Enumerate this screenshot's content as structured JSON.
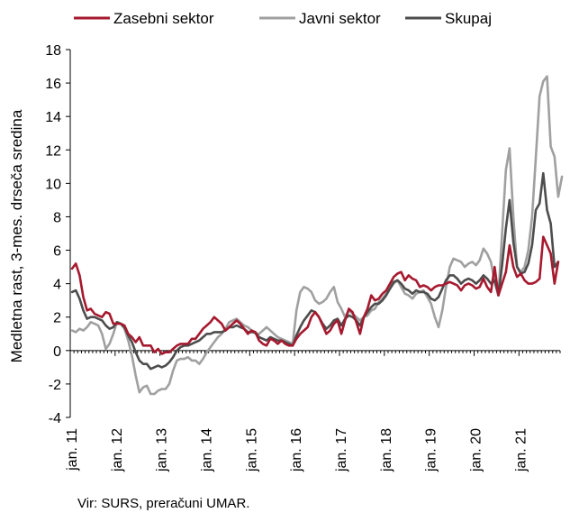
{
  "chart_data": {
    "type": "line",
    "ylabel": "Medletna rast, 3-mes. drseča sredina",
    "xlabel": "",
    "ylim": [
      -4,
      18
    ],
    "yticks": [
      -4,
      -2,
      0,
      2,
      4,
      6,
      8,
      10,
      12,
      14,
      16,
      18
    ],
    "xtick_labels": [
      "jan. 11",
      "jan. 12",
      "jan. 13",
      "jan. 14",
      "jan. 15",
      "jan. 16",
      "jan. 17",
      "jan. 18",
      "jan. 19",
      "jan. 20",
      "jan. 21"
    ],
    "x_start_label": "jan. 11",
    "grid": false,
    "legend_position": "top",
    "series": [
      {
        "name": "Zasebni sektor",
        "color": "#A6192E",
        "values": [
          4.9,
          5.2,
          4.5,
          3.2,
          2.4,
          2.5,
          2.2,
          2.1,
          2.0,
          2.3,
          2.2,
          1.6,
          1.6,
          1.6,
          1.5,
          1.0,
          0.8,
          0.5,
          0.8,
          0.3,
          0.3,
          0.3,
          -0.1,
          0.1,
          -0.2,
          -0.1,
          -0.1,
          0.1,
          0.3,
          0.4,
          0.4,
          0.4,
          0.7,
          0.7,
          1.0,
          1.3,
          1.5,
          1.7,
          2.0,
          1.8,
          1.6,
          1.2,
          1.4,
          1.6,
          1.8,
          1.6,
          1.3,
          1.0,
          1.2,
          1.1,
          0.6,
          0.4,
          0.3,
          0.7,
          0.6,
          0.4,
          0.6,
          0.4,
          0.3,
          0.3,
          0.7,
          1.0,
          1.2,
          1.4,
          2.0,
          2.3,
          2.0,
          1.5,
          1.0,
          1.2,
          1.6,
          1.8,
          1.0,
          1.8,
          2.5,
          2.3,
          1.7,
          1.0,
          2.0,
          2.5,
          3.3,
          3.0,
          3.1,
          3.4,
          3.6,
          4.0,
          4.4,
          4.6,
          4.7,
          4.2,
          4.5,
          4.3,
          4.2,
          3.8,
          3.9,
          3.8,
          3.6,
          3.8,
          3.9,
          3.9,
          4.0,
          4.1,
          4.0,
          3.9,
          3.6,
          3.9,
          4.0,
          3.9,
          3.7,
          3.8,
          4.3,
          3.8,
          3.5,
          5.0,
          3.3,
          4.0,
          4.7,
          6.3,
          5.0,
          4.4,
          4.6,
          4.2,
          4.0,
          4.0,
          4.1,
          4.3,
          6.8,
          6.3,
          5.8,
          4.0,
          5.3
        ]
      },
      {
        "name": "Javni sektor",
        "color": "#A0A0A0",
        "values": [
          1.2,
          1.1,
          1.3,
          1.2,
          1.4,
          1.7,
          1.6,
          1.5,
          1.0,
          0.1,
          0.4,
          1.0,
          1.7,
          1.6,
          1.3,
          0.6,
          -0.3,
          -1.5,
          -2.5,
          -2.2,
          -2.1,
          -2.6,
          -2.6,
          -2.4,
          -2.3,
          -2.3,
          -2.0,
          -1.2,
          -0.6,
          -0.5,
          -0.5,
          -0.4,
          -0.6,
          -0.6,
          -0.8,
          -0.5,
          -0.1,
          0.2,
          0.5,
          0.8,
          1.0,
          1.3,
          1.7,
          1.8,
          1.9,
          1.7,
          1.5,
          1.4,
          1.2,
          1.0,
          1.0,
          1.2,
          1.4,
          1.2,
          1.0,
          0.8,
          0.7,
          0.6,
          0.5,
          0.4,
          2.4,
          3.5,
          3.8,
          3.7,
          3.5,
          3.0,
          2.8,
          2.9,
          3.1,
          3.5,
          3.8,
          2.9,
          2.5,
          2.0,
          2.4,
          2.2,
          2.0,
          1.8,
          2.0,
          2.1,
          2.4,
          2.5,
          2.9,
          3.1,
          3.4,
          3.7,
          4.0,
          4.2,
          3.8,
          3.4,
          3.3,
          3.1,
          3.4,
          3.5,
          3.6,
          3.2,
          2.8,
          2.0,
          1.4,
          2.4,
          3.8,
          5.0,
          5.5,
          5.4,
          5.3,
          5.0,
          5.2,
          5.3,
          5.1,
          5.4,
          6.1,
          5.8,
          5.3,
          4.1,
          3.3,
          7.0,
          10.8,
          12.1,
          8.0,
          5.0,
          4.7,
          5.0,
          6.0,
          8.0,
          11.5,
          15.2,
          16.1,
          16.4,
          12.2,
          11.6,
          9.2,
          10.4
        ]
      },
      {
        "name": "Skupaj",
        "color": "#4D4D4D",
        "values": [
          3.5,
          3.6,
          3.1,
          2.4,
          1.9,
          2.0,
          2.0,
          1.9,
          1.8,
          1.5,
          1.3,
          1.4,
          1.7,
          1.6,
          1.4,
          0.9,
          0.5,
          -0.1,
          -0.6,
          -0.8,
          -0.8,
          -1.1,
          -1.0,
          -0.9,
          -1.0,
          -0.9,
          -0.7,
          -0.4,
          0.0,
          0.2,
          0.3,
          0.3,
          0.4,
          0.5,
          0.6,
          0.8,
          1.0,
          1.0,
          1.1,
          1.1,
          1.1,
          1.2,
          1.4,
          1.4,
          1.5,
          1.4,
          1.3,
          1.1,
          1.1,
          1.1,
          0.8,
          0.7,
          0.6,
          0.8,
          0.7,
          0.6,
          0.6,
          0.5,
          0.4,
          0.3,
          0.9,
          1.4,
          1.8,
          2.1,
          2.4,
          2.3,
          2.0,
          1.6,
          1.3,
          1.5,
          1.8,
          1.9,
          1.5,
          1.9,
          2.1,
          2.0,
          1.8,
          1.5,
          2.0,
          2.3,
          2.6,
          2.8,
          2.8,
          3.0,
          3.3,
          3.7,
          4.1,
          4.2,
          4.0,
          3.7,
          3.6,
          3.4,
          3.6,
          3.5,
          3.5,
          3.4,
          3.1,
          3.0,
          3.2,
          3.7,
          4.2,
          4.5,
          4.5,
          4.3,
          4.0,
          4.2,
          4.3,
          4.2,
          4.0,
          4.2,
          4.5,
          4.3,
          4.0,
          4.2,
          3.3,
          5.1,
          7.3,
          9.0,
          6.5,
          5.0,
          4.6,
          4.7,
          5.2,
          6.3,
          8.4,
          8.8,
          10.6,
          8.4,
          7.6,
          5.0,
          5.3
        ]
      }
    ]
  },
  "source_text": "Vir: SURS, preračuni UMAR."
}
